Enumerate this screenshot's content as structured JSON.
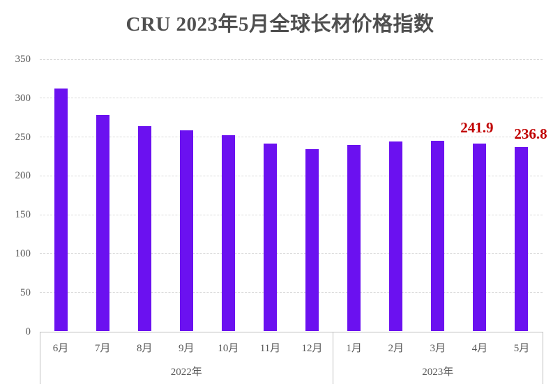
{
  "title": "CRU 2023年5月全球长材价格指数",
  "colors": {
    "bar": "#6B11F0",
    "data_label": "#C00000",
    "title_text": "#4F4F4F",
    "axis_text": "#595959",
    "gridline": "#D9D9D9",
    "axis_line": "#BFBFBF"
  },
  "chart_data": {
    "type": "bar",
    "title": "CRU 2023年5月全球长材价格指数",
    "categories": [
      "6月",
      "7月",
      "8月",
      "9月",
      "10月",
      "11月",
      "12月",
      "1月",
      "2月",
      "3月",
      "4月",
      "5月"
    ],
    "group_labels": [
      {
        "label": "2022年",
        "span": 7
      },
      {
        "label": "2023年",
        "span": 5
      }
    ],
    "values": [
      312.8,
      278.4,
      264.2,
      259.0,
      252.6,
      241.7,
      234.4,
      240.1,
      244.5,
      244.7,
      241.9,
      236.8
    ],
    "data_labels": [
      {
        "index": 10,
        "text": "241.9"
      },
      {
        "index": 11,
        "text": "236.8"
      }
    ],
    "xlabel": "",
    "ylabel": "",
    "ylim": [
      0,
      350
    ],
    "yticks": [
      0,
      50,
      100,
      150,
      200,
      250,
      300,
      350
    ],
    "grid": true,
    "gridline_style": "dashed",
    "legend": "none"
  }
}
